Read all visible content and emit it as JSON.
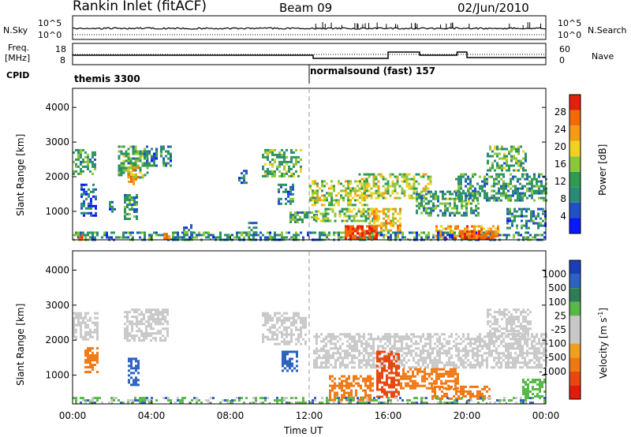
{
  "header": {
    "station": "Rankin Inlet (fitACF)",
    "beam": "Beam 09",
    "date": "02/Jun/2010"
  },
  "noise_panel": {
    "left_label": "N.Sky",
    "right_label": "N.Search",
    "left_ticks": [
      "10^5",
      "10^0"
    ],
    "right_ticks": [
      "10^5",
      "10^0"
    ]
  },
  "freq_panel": {
    "left_label_1": "Freq.",
    "left_label_2": "[MHz]",
    "right_label": "Nave",
    "left_ticks": [
      "18",
      "8"
    ],
    "right_ticks": [
      "60",
      "0"
    ]
  },
  "cpid": {
    "label": "CPID",
    "mode1": "themis 3300",
    "mode2": "normalsound (fast) 157",
    "switch_hour": 12
  },
  "colors": {
    "power_scale": [
      "#0a18ff",
      "#1f50c8",
      "#2a8a78",
      "#2f9a50",
      "#8cc63c",
      "#f0d21e",
      "#f59a14",
      "#f06a0a",
      "#e61e0a"
    ],
    "velocity_scale": [
      "#1a3fb8",
      "#2c62c0",
      "#2e7d55",
      "#58b848",
      "#c8c8c8",
      "#c8c8c8",
      "#f0a020",
      "#f07814",
      "#e84810",
      "#e41a0a"
    ]
  },
  "chart_data": [
    {
      "type": "heatmap",
      "title": "Power",
      "ylabel": "Slant Range [km]",
      "xlabel": "",
      "x_ticks": [
        "00:00",
        "04:00",
        "08:00",
        "12:00",
        "16:00",
        "20:00",
        "00:00"
      ],
      "x_range_hours": [
        0,
        24
      ],
      "y_ticks": [
        1000,
        2000,
        3000,
        4000
      ],
      "ylim": [
        180,
        4550
      ],
      "colorbar_label": "Power [dB]",
      "colorbar_ticks": [
        4,
        8,
        12,
        16,
        20,
        24,
        28
      ],
      "colorbar_range": [
        0,
        32
      ],
      "regions": [
        {
          "t0": 0.0,
          "t1": 1.1,
          "r0": 2100,
          "r1": 2800,
          "v": 12
        },
        {
          "t0": 0.4,
          "t1": 1.2,
          "r0": 900,
          "r1": 1800,
          "v": 6
        },
        {
          "t0": 1.6,
          "t1": 2.2,
          "r0": 1000,
          "r1": 1300,
          "v": 9
        },
        {
          "t0": 2.3,
          "t1": 3.8,
          "r0": 2000,
          "r1": 2900,
          "v": 13
        },
        {
          "t0": 2.8,
          "t1": 3.4,
          "r0": 1800,
          "r1": 2300,
          "v": 21
        },
        {
          "t0": 2.6,
          "t1": 3.3,
          "r0": 800,
          "r1": 1500,
          "v": 12
        },
        {
          "t0": 3.6,
          "t1": 5.0,
          "r0": 2300,
          "r1": 2900,
          "v": 9
        },
        {
          "t0": 5.6,
          "t1": 6.0,
          "r0": 200,
          "r1": 700,
          "v": 7
        },
        {
          "t0": 8.4,
          "t1": 8.8,
          "r0": 1800,
          "r1": 2200,
          "v": 8
        },
        {
          "t0": 8.9,
          "t1": 9.3,
          "r0": 300,
          "r1": 700,
          "v": 7
        },
        {
          "t0": 9.6,
          "t1": 11.6,
          "r0": 2000,
          "r1": 2800,
          "v": 13
        },
        {
          "t0": 10.4,
          "t1": 11.2,
          "r0": 1200,
          "r1": 1800,
          "v": 9
        },
        {
          "t0": 11.0,
          "t1": 12.4,
          "r0": 700,
          "r1": 1000,
          "v": 12
        },
        {
          "t0": 12.0,
          "t1": 15.0,
          "r0": 1200,
          "r1": 1900,
          "v": 17
        },
        {
          "t0": 12.3,
          "t1": 15.5,
          "r0": 700,
          "r1": 1100,
          "v": 14
        },
        {
          "t0": 14.5,
          "t1": 18.2,
          "r0": 1400,
          "r1": 2100,
          "v": 16
        },
        {
          "t0": 15.0,
          "t1": 16.6,
          "r0": 300,
          "r1": 1100,
          "v": 21
        },
        {
          "t0": 17.4,
          "t1": 20.6,
          "r0": 900,
          "r1": 1600,
          "v": 12
        },
        {
          "t0": 18.4,
          "t1": 21.6,
          "r0": 200,
          "r1": 600,
          "v": 23
        },
        {
          "t0": 19.4,
          "t1": 24.0,
          "r0": 1300,
          "r1": 2100,
          "v": 11
        },
        {
          "t0": 21.0,
          "t1": 23.0,
          "r0": 2200,
          "r1": 2900,
          "v": 13
        },
        {
          "t0": 22.0,
          "t1": 24.0,
          "r0": 500,
          "r1": 1100,
          "v": 9
        }
      ],
      "ground_band": {
        "r0": 180,
        "r1": 420,
        "v": 10
      },
      "hotspots": [
        {
          "t0": 0.3,
          "t1": 0.5,
          "r0": 200,
          "r1": 420,
          "v": 27
        },
        {
          "t0": 4.6,
          "t1": 4.9,
          "r0": 200,
          "r1": 380,
          "v": 26
        },
        {
          "t0": 13.8,
          "t1": 15.4,
          "r0": 200,
          "r1": 600,
          "v": 28
        },
        {
          "t0": 19.6,
          "t1": 21.5,
          "r0": 200,
          "r1": 450,
          "v": 27
        }
      ]
    },
    {
      "type": "heatmap",
      "title": "Velocity",
      "ylabel": "Slant Range [km]",
      "xlabel": "Time UT",
      "x_ticks": [
        "00:00",
        "04:00",
        "08:00",
        "12:00",
        "16:00",
        "20:00",
        "00:00"
      ],
      "x_range_hours": [
        0,
        24
      ],
      "y_ticks": [
        1000,
        2000,
        3000,
        4000
      ],
      "ylim": [
        180,
        4550
      ],
      "colorbar_label": "Velocity [m s^-1]",
      "colorbar_ticks": [
        "1000",
        "500",
        "100",
        "25",
        "-25",
        "-100",
        "-500",
        "-1000"
      ],
      "regions": [
        {
          "t0": 0.0,
          "t1": 1.3,
          "r0": 2000,
          "r1": 2800,
          "v": 0
        },
        {
          "t0": 0.6,
          "t1": 1.3,
          "r0": 1100,
          "r1": 1800,
          "v": -300
        },
        {
          "t0": 2.6,
          "t1": 4.8,
          "r0": 2000,
          "r1": 2900,
          "v": 0
        },
        {
          "t0": 2.8,
          "t1": 3.4,
          "r0": 700,
          "r1": 1500,
          "v": 200
        },
        {
          "t0": 9.6,
          "t1": 11.8,
          "r0": 1900,
          "r1": 2800,
          "v": 0
        },
        {
          "t0": 10.6,
          "t1": 11.4,
          "r0": 1100,
          "r1": 1700,
          "v": 150
        },
        {
          "t0": 12.2,
          "t1": 24.0,
          "r0": 1200,
          "r1": 2200,
          "v": 0
        },
        {
          "t0": 13.0,
          "t1": 15.2,
          "r0": 300,
          "r1": 1000,
          "v": -200
        },
        {
          "t0": 15.4,
          "t1": 16.6,
          "r0": 400,
          "r1": 1700,
          "v": -700
        },
        {
          "t0": 16.6,
          "t1": 19.6,
          "r0": 600,
          "r1": 1200,
          "v": -150
        },
        {
          "t0": 18.2,
          "t1": 21.2,
          "r0": 300,
          "r1": 700,
          "v": -300
        },
        {
          "t0": 21.0,
          "t1": 23.2,
          "r0": 2100,
          "r1": 2900,
          "v": 0
        },
        {
          "t0": 22.8,
          "t1": 24.0,
          "r0": 400,
          "r1": 900,
          "v": 60
        }
      ],
      "ground_band": {
        "r0": 180,
        "r1": 380,
        "v": 60
      }
    }
  ]
}
